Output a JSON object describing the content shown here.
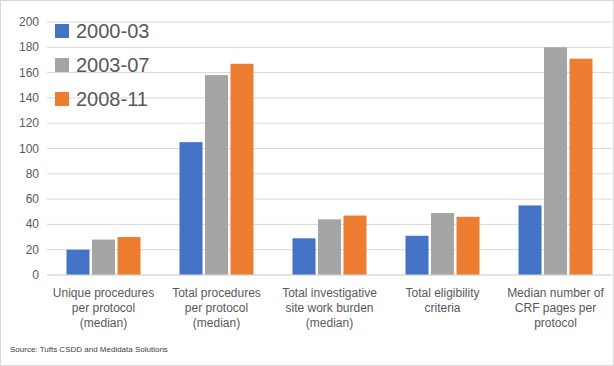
{
  "chart_data": {
    "type": "bar",
    "categories": [
      "Unique procedures per protocol (median)",
      "Total procedures per protocol (median)",
      "Total investigative site work burden (median)",
      "Total eligibility criteria",
      "Median number of CRF pages per protocol"
    ],
    "series": [
      {
        "name": "2000-03",
        "color": "#4472c4",
        "values": [
          20,
          105,
          29,
          31,
          55
        ]
      },
      {
        "name": "2003-07",
        "color": "#a5a5a5",
        "values": [
          28,
          158,
          44,
          49,
          180
        ]
      },
      {
        "name": "2008-11",
        "color": "#ed7d31",
        "values": [
          30,
          167,
          47,
          46,
          171
        ]
      }
    ],
    "ylim": [
      0,
      200
    ],
    "yticks": [
      0,
      20,
      40,
      60,
      80,
      100,
      120,
      140,
      160,
      180,
      200
    ],
    "grid": true,
    "legend": "top-left",
    "annotations": [
      "Source: Tufts CSDD and Medidata Solutions"
    ]
  }
}
